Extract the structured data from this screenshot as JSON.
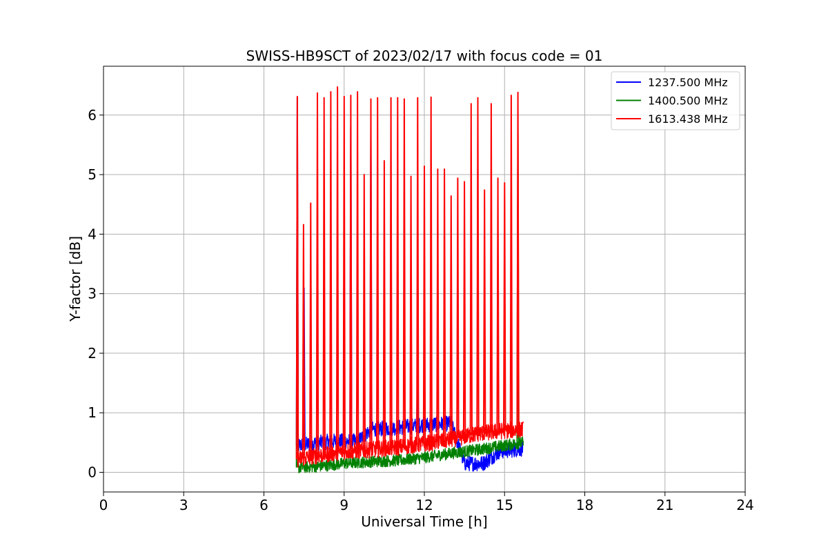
{
  "chart_data": {
    "type": "line",
    "title": "SWISS-HB9SCT of 2023/02/17 with focus code = 01",
    "xlabel": "Universal Time [h]",
    "ylabel": "Y-factor [dB]",
    "xlim": [
      0,
      24
    ],
    "ylim": [
      -0.33,
      6.82
    ],
    "xticks": [
      0,
      3,
      6,
      9,
      12,
      15,
      18,
      21,
      24
    ],
    "yticks": [
      0,
      1,
      2,
      3,
      4,
      5,
      6
    ],
    "grid": true,
    "legend_position": "top-right",
    "series": [
      {
        "name": "1237.500 MHz",
        "color": "#0000ff",
        "baseline": [
          [
            7.25,
            0.45
          ],
          [
            8.5,
            0.52
          ],
          [
            9.5,
            0.52
          ],
          [
            10.0,
            0.72
          ],
          [
            11.0,
            0.75
          ],
          [
            12.0,
            0.8
          ],
          [
            13.0,
            0.82
          ],
          [
            13.5,
            0.15
          ],
          [
            14.2,
            0.15
          ],
          [
            14.8,
            0.35
          ],
          [
            15.7,
            0.4
          ]
        ],
        "spikes": [
          [
            7.25,
            6.3
          ],
          [
            7.5,
            3.1
          ],
          [
            11.75,
            2.2
          ],
          [
            10.0,
            5.7
          ],
          [
            9.25,
            5.8
          ]
        ]
      },
      {
        "name": "1400.500 MHz",
        "color": "#008000",
        "baseline": [
          [
            7.25,
            0.08
          ],
          [
            8.0,
            0.1
          ],
          [
            9.0,
            0.15
          ],
          [
            10.0,
            0.18
          ],
          [
            11.0,
            0.2
          ],
          [
            12.0,
            0.25
          ],
          [
            13.0,
            0.32
          ],
          [
            14.0,
            0.38
          ],
          [
            15.0,
            0.45
          ],
          [
            15.7,
            0.5
          ]
        ],
        "spikes": [
          [
            7.25,
            5.6
          ],
          [
            15.5,
            5.7
          ]
        ]
      },
      {
        "name": "1613.438 MHz",
        "color": "#ff0000",
        "baseline": [
          [
            7.25,
            0.22
          ],
          [
            8.0,
            0.28
          ],
          [
            9.0,
            0.35
          ],
          [
            10.0,
            0.38
          ],
          [
            11.0,
            0.42
          ],
          [
            12.0,
            0.48
          ],
          [
            13.0,
            0.55
          ],
          [
            14.0,
            0.65
          ],
          [
            15.0,
            0.7
          ],
          [
            15.7,
            0.72
          ]
        ],
        "spikes": [
          [
            7.25,
            6.32
          ],
          [
            7.48,
            4.17
          ],
          [
            7.75,
            4.53
          ],
          [
            8.0,
            6.38
          ],
          [
            8.25,
            6.3
          ],
          [
            8.5,
            6.4
          ],
          [
            8.75,
            6.48
          ],
          [
            9.0,
            6.32
          ],
          [
            9.25,
            6.34
          ],
          [
            9.5,
            6.4
          ],
          [
            9.75,
            5.01
          ],
          [
            10.0,
            6.28
          ],
          [
            10.25,
            6.3
          ],
          [
            10.5,
            5.24
          ],
          [
            10.75,
            6.3
          ],
          [
            11.0,
            6.3
          ],
          [
            11.25,
            6.28
          ],
          [
            11.5,
            4.98
          ],
          [
            11.75,
            6.3
          ],
          [
            12.0,
            5.15
          ],
          [
            12.25,
            6.31
          ],
          [
            12.5,
            5.1
          ],
          [
            12.75,
            5.1
          ],
          [
            13.0,
            4.65
          ],
          [
            13.25,
            4.95
          ],
          [
            13.5,
            4.89
          ],
          [
            13.75,
            6.2
          ],
          [
            14.0,
            6.3
          ],
          [
            14.25,
            4.75
          ],
          [
            14.5,
            6.2
          ],
          [
            14.75,
            4.95
          ],
          [
            15.0,
            4.87
          ],
          [
            15.25,
            6.34
          ],
          [
            15.5,
            6.39
          ]
        ]
      }
    ]
  }
}
